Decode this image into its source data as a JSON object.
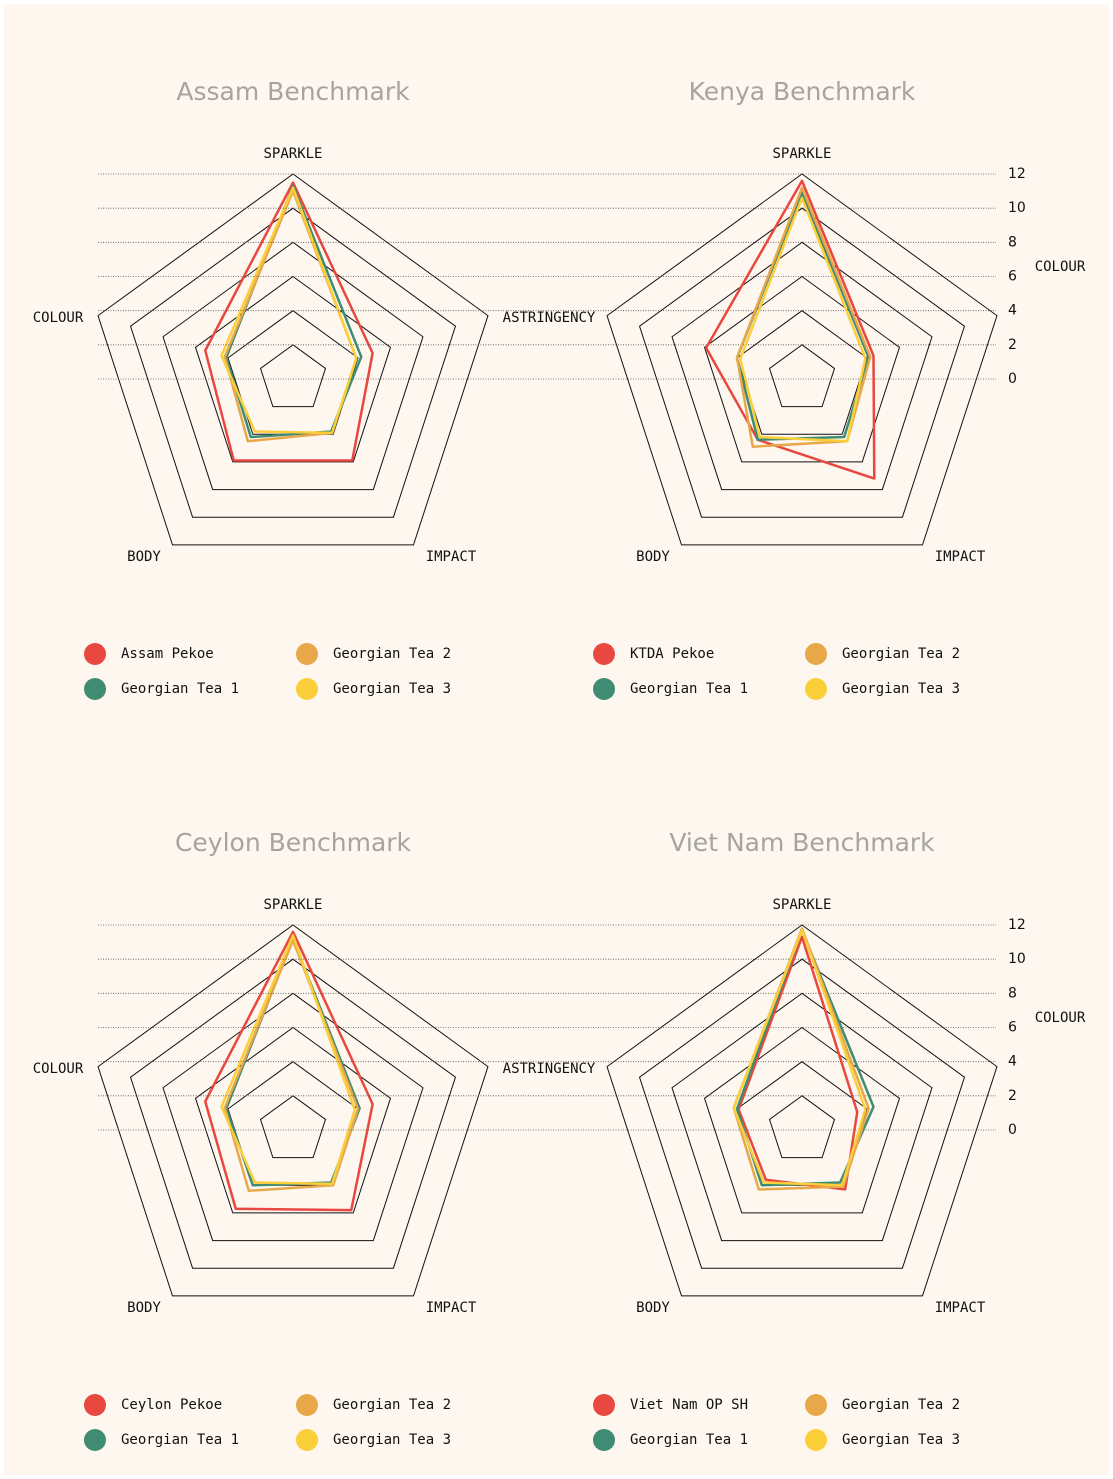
{
  "chart_data": [
    {
      "type": "radar",
      "title": "Assam Benchmark",
      "axes": [
        "SPARKLE",
        "ASTRINGENCY",
        "IMPACT",
        "BODY",
        "COLOUR"
      ],
      "rlim": [
        0,
        12
      ],
      "rticks": [
        0,
        2,
        4,
        6,
        8,
        10,
        12
      ],
      "tick_labels": false,
      "series": [
        {
          "name": "Assam Pekoe",
          "color": "#e8483f",
          "values": [
            11.5,
            4.9,
            5.9,
            5.9,
            5.4
          ]
        },
        {
          "name": "Georgian Tea 1",
          "color": "#3f8c73",
          "values": [
            11.3,
            4.2,
            3.8,
            4.2,
            4.1
          ]
        },
        {
          "name": "Georgian Tea 2",
          "color": "#e8a84a",
          "values": [
            11.0,
            3.9,
            3.9,
            4.5,
            4.2
          ]
        },
        {
          "name": "Georgian Tea 3",
          "color": "#fbcf3a",
          "values": [
            11.2,
            3.9,
            3.9,
            3.8,
            4.4
          ]
        }
      ]
    },
    {
      "type": "radar",
      "title": "Kenya Benchmark",
      "axes": [
        "SPARKLE",
        null,
        "IMPACT",
        "BODY",
        "COLOUR"
      ],
      "rlim": [
        0,
        12
      ],
      "rticks": [
        0,
        2,
        4,
        6,
        8,
        10,
        12
      ],
      "tick_labels": true,
      "series": [
        {
          "name": "KTDA Pekoe",
          "color": "#e8483f",
          "values": [
            11.6,
            4.4,
            7.2,
            4.4,
            5.9
          ]
        },
        {
          "name": "Georgian Tea 1",
          "color": "#3f8c73",
          "values": [
            10.9,
            4.1,
            4.2,
            4.4,
            4.0
          ]
        },
        {
          "name": "Georgian Tea 2",
          "color": "#e8a84a",
          "values": [
            11.2,
            4.2,
            4.5,
            4.9,
            4.0
          ]
        },
        {
          "name": "Georgian Tea 3",
          "color": "#fbcf3a",
          "values": [
            10.6,
            3.9,
            4.5,
            4.2,
            3.8
          ]
        }
      ]
    },
    {
      "type": "radar",
      "title": "Ceylon Benchmark",
      "axes": [
        "SPARKLE",
        "ASTRINGENCY",
        "IMPACT",
        "BODY",
        "COLOUR"
      ],
      "rlim": [
        0,
        12
      ],
      "rticks": [
        0,
        2,
        4,
        6,
        8,
        10,
        12
      ],
      "tick_labels": false,
      "series": [
        {
          "name": "Ceylon Pekoe",
          "color": "#e8483f",
          "values": [
            11.6,
            4.9,
            5.8,
            5.7,
            5.4
          ]
        },
        {
          "name": "Georgian Tea 1",
          "color": "#3f8c73",
          "values": [
            11.2,
            4.1,
            3.8,
            4.0,
            4.1
          ]
        },
        {
          "name": "Georgian Tea 2",
          "color": "#e8a84a",
          "values": [
            11.1,
            4.0,
            4.0,
            4.4,
            4.2
          ]
        },
        {
          "name": "Georgian Tea 3",
          "color": "#fbcf3a",
          "values": [
            11.4,
            3.8,
            3.9,
            3.8,
            4.4
          ]
        }
      ]
    },
    {
      "type": "radar",
      "title": "Viet Nam Benchmark",
      "axes": [
        "SPARKLE",
        null,
        "IMPACT",
        "BODY",
        "COLOUR"
      ],
      "rlim": [
        0,
        12
      ],
      "rticks": [
        0,
        2,
        4,
        6,
        8,
        10,
        12
      ],
      "tick_labels": true,
      "series": [
        {
          "name": "Viet Nam OP SH",
          "color": "#e8483f",
          "values": [
            11.3,
            3.4,
            4.3,
            3.6,
            3.9
          ]
        },
        {
          "name": "Georgian Tea 1",
          "color": "#3f8c73",
          "values": [
            11.7,
            4.4,
            3.8,
            4.0,
            4.0
          ]
        },
        {
          "name": "Georgian Tea 2",
          "color": "#e8a84a",
          "values": [
            11.8,
            4.1,
            4.1,
            4.3,
            4.2
          ]
        },
        {
          "name": "Georgian Tea 3",
          "color": "#fbcf3a",
          "values": [
            11.7,
            3.9,
            4.0,
            3.8,
            4.2
          ]
        }
      ]
    }
  ]
}
